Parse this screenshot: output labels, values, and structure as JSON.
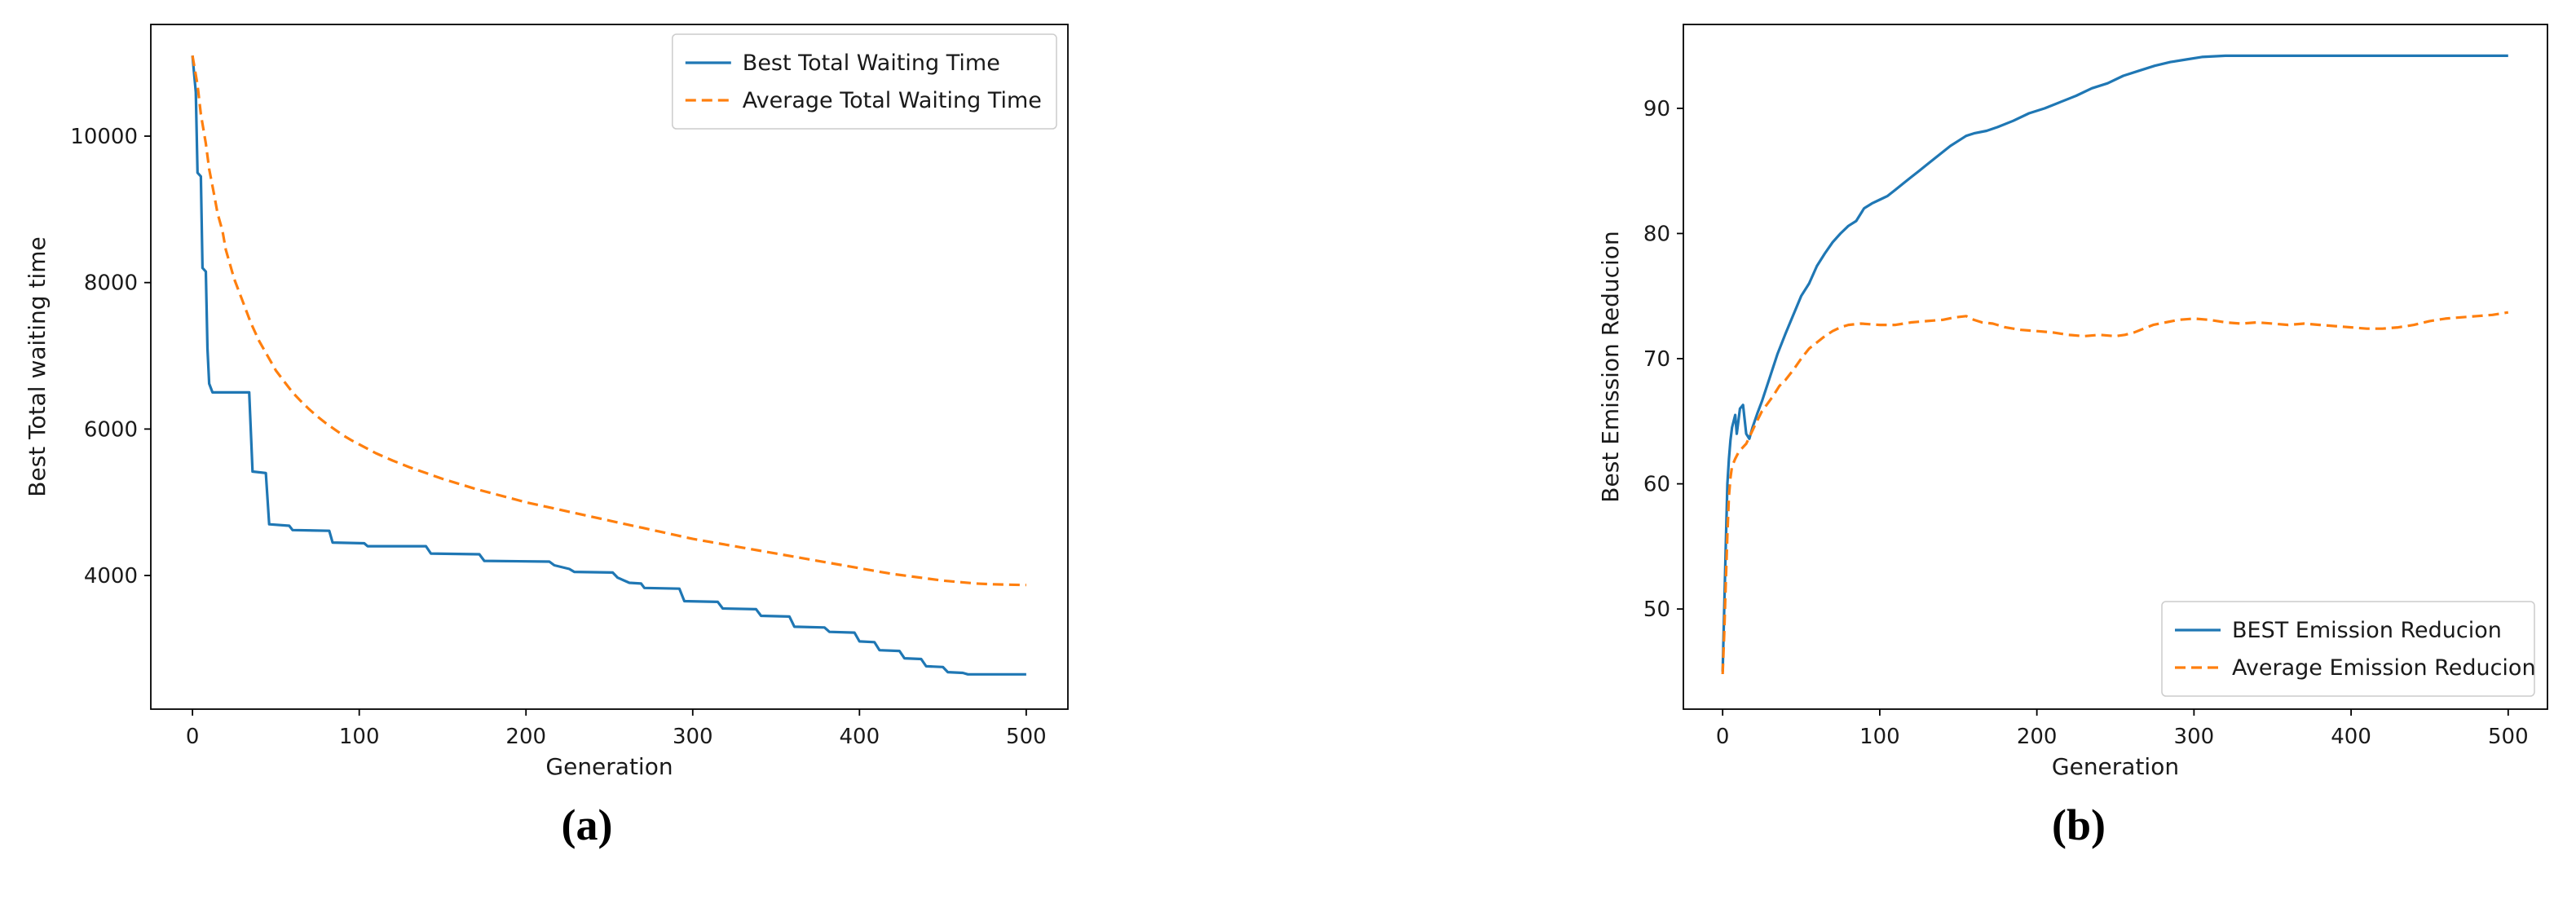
{
  "captions": {
    "a": "(a)",
    "b": "(b)"
  },
  "colors": {
    "series_blue": "#1f77b4",
    "series_orange": "#ff7f0e",
    "axis": "#000000",
    "legend_border": "#cccccc",
    "background": "#ffffff"
  },
  "chart_data": [
    {
      "id": "chart-a",
      "type": "line",
      "title": "",
      "xlabel": "Generation",
      "ylabel": "Best Total waiting time",
      "xlim": [
        -25,
        525
      ],
      "ylim": [
        2175,
        11525
      ],
      "xticks": [
        0,
        100,
        200,
        300,
        400,
        500
      ],
      "yticks": [
        4000,
        6000,
        8000,
        10000
      ],
      "grid": false,
      "legend_position": "top-right",
      "series": [
        {
          "name": "Best Total Waiting Time",
          "color": "#1f77b4",
          "dash": "solid",
          "points": [
            [
              0,
              11100
            ],
            [
              2,
              10600
            ],
            [
              3,
              9500
            ],
            [
              5,
              9450
            ],
            [
              6,
              8200
            ],
            [
              8,
              8150
            ],
            [
              9,
              7100
            ],
            [
              10,
              6620
            ],
            [
              12,
              6500
            ],
            [
              34,
              6500
            ],
            [
              36,
              5420
            ],
            [
              44,
              5400
            ],
            [
              46,
              4700
            ],
            [
              58,
              4680
            ],
            [
              60,
              4620
            ],
            [
              82,
              4610
            ],
            [
              84,
              4450
            ],
            [
              103,
              4440
            ],
            [
              105,
              4400
            ],
            [
              140,
              4400
            ],
            [
              143,
              4300
            ],
            [
              172,
              4290
            ],
            [
              175,
              4200
            ],
            [
              214,
              4190
            ],
            [
              217,
              4140
            ],
            [
              226,
              4090
            ],
            [
              229,
              4050
            ],
            [
              252,
              4040
            ],
            [
              255,
              3970
            ],
            [
              262,
              3900
            ],
            [
              269,
              3890
            ],
            [
              271,
              3830
            ],
            [
              292,
              3820
            ],
            [
              295,
              3650
            ],
            [
              315,
              3640
            ],
            [
              318,
              3550
            ],
            [
              338,
              3540
            ],
            [
              341,
              3450
            ],
            [
              358,
              3440
            ],
            [
              361,
              3300
            ],
            [
              379,
              3290
            ],
            [
              382,
              3230
            ],
            [
              397,
              3220
            ],
            [
              400,
              3100
            ],
            [
              409,
              3090
            ],
            [
              412,
              2980
            ],
            [
              424,
              2970
            ],
            [
              427,
              2870
            ],
            [
              437,
              2860
            ],
            [
              440,
              2760
            ],
            [
              450,
              2750
            ],
            [
              453,
              2680
            ],
            [
              462,
              2670
            ],
            [
              465,
              2650
            ],
            [
              500,
              2650
            ]
          ]
        },
        {
          "name": "Average Total Waiting Time",
          "color": "#ff7f0e",
          "dash": "dashed",
          "points": [
            [
              0,
              11100
            ],
            [
              3,
              10700
            ],
            [
              5,
              10300
            ],
            [
              8,
              9900
            ],
            [
              10,
              9550
            ],
            [
              13,
              9200
            ],
            [
              15,
              8950
            ],
            [
              18,
              8700
            ],
            [
              20,
              8450
            ],
            [
              25,
              8050
            ],
            [
              30,
              7750
            ],
            [
              35,
              7450
            ],
            [
              40,
              7200
            ],
            [
              45,
              7000
            ],
            [
              50,
              6800
            ],
            [
              55,
              6650
            ],
            [
              60,
              6500
            ],
            [
              65,
              6380
            ],
            [
              70,
              6270
            ],
            [
              75,
              6170
            ],
            [
              80,
              6080
            ],
            [
              85,
              6000
            ],
            [
              90,
              5920
            ],
            [
              95,
              5850
            ],
            [
              100,
              5790
            ],
            [
              110,
              5670
            ],
            [
              120,
              5570
            ],
            [
              130,
              5480
            ],
            [
              140,
              5400
            ],
            [
              150,
              5320
            ],
            [
              160,
              5250
            ],
            [
              170,
              5180
            ],
            [
              180,
              5120
            ],
            [
              190,
              5060
            ],
            [
              200,
              5000
            ],
            [
              210,
              4950
            ],
            [
              220,
              4900
            ],
            [
              230,
              4850
            ],
            [
              240,
              4800
            ],
            [
              250,
              4750
            ],
            [
              260,
              4700
            ],
            [
              270,
              4650
            ],
            [
              280,
              4600
            ],
            [
              290,
              4550
            ],
            [
              300,
              4500
            ],
            [
              310,
              4460
            ],
            [
              320,
              4420
            ],
            [
              330,
              4380
            ],
            [
              340,
              4340
            ],
            [
              350,
              4300
            ],
            [
              360,
              4260
            ],
            [
              370,
              4220
            ],
            [
              380,
              4180
            ],
            [
              390,
              4140
            ],
            [
              400,
              4100
            ],
            [
              410,
              4060
            ],
            [
              420,
              4020
            ],
            [
              430,
              3990
            ],
            [
              440,
              3960
            ],
            [
              450,
              3930
            ],
            [
              460,
              3910
            ],
            [
              470,
              3890
            ],
            [
              480,
              3880
            ],
            [
              490,
              3875
            ],
            [
              500,
              3870
            ]
          ]
        }
      ]
    },
    {
      "id": "chart-b",
      "type": "line",
      "title": "",
      "xlabel": "Generation",
      "ylabel": "Best Emission Reducion",
      "xlim": [
        -25,
        525
      ],
      "ylim": [
        42,
        96.7
      ],
      "xticks": [
        0,
        100,
        200,
        300,
        400,
        500
      ],
      "yticks": [
        50,
        60,
        70,
        80,
        90
      ],
      "grid": false,
      "legend_position": "bottom-right",
      "series": [
        {
          "name": "BEST Emission Reducion",
          "color": "#1f77b4",
          "dash": "solid",
          "points": [
            [
              0,
              45
            ],
            [
              1,
              50
            ],
            [
              2,
              55
            ],
            [
              3,
              60
            ],
            [
              4,
              62
            ],
            [
              5,
              63.5
            ],
            [
              6,
              64.5
            ],
            [
              8,
              65.5
            ],
            [
              9,
              64
            ],
            [
              11,
              66
            ],
            [
              13,
              66.3
            ],
            [
              15,
              64
            ],
            [
              17,
              63.6
            ],
            [
              19,
              64.5
            ],
            [
              22,
              65.6
            ],
            [
              25,
              66.6
            ],
            [
              30,
              68.5
            ],
            [
              35,
              70.4
            ],
            [
              40,
              72
            ],
            [
              45,
              73.5
            ],
            [
              50,
              75
            ],
            [
              55,
              76
            ],
            [
              60,
              77.4
            ],
            [
              65,
              78.4
            ],
            [
              70,
              79.3
            ],
            [
              75,
              80
            ],
            [
              80,
              80.6
            ],
            [
              85,
              81
            ],
            [
              90,
              82
            ],
            [
              95,
              82.4
            ],
            [
              100,
              82.7
            ],
            [
              105,
              83
            ],
            [
              110,
              83.5
            ],
            [
              115,
              84
            ],
            [
              120,
              84.5
            ],
            [
              125,
              85
            ],
            [
              130,
              85.5
            ],
            [
              135,
              86
            ],
            [
              140,
              86.5
            ],
            [
              145,
              87
            ],
            [
              150,
              87.4
            ],
            [
              155,
              87.8
            ],
            [
              160,
              88
            ],
            [
              168,
              88.2
            ],
            [
              175,
              88.5
            ],
            [
              185,
              89
            ],
            [
              195,
              89.6
            ],
            [
              205,
              90
            ],
            [
              215,
              90.5
            ],
            [
              225,
              91
            ],
            [
              235,
              91.6
            ],
            [
              245,
              92
            ],
            [
              255,
              92.6
            ],
            [
              265,
              93
            ],
            [
              275,
              93.4
            ],
            [
              285,
              93.7
            ],
            [
              295,
              93.9
            ],
            [
              305,
              94.1
            ],
            [
              320,
              94.2
            ],
            [
              400,
              94.2
            ],
            [
              500,
              94.2
            ]
          ]
        },
        {
          "name": "Average Emission Reducion",
          "color": "#ff7f0e",
          "dash": "dashed",
          "points": [
            [
              0,
              44.8
            ],
            [
              1,
              48
            ],
            [
              2,
              52
            ],
            [
              3,
              56
            ],
            [
              4,
              59
            ],
            [
              5,
              60.5
            ],
            [
              6,
              61.4
            ],
            [
              8,
              62
            ],
            [
              10,
              62.5
            ],
            [
              12,
              62.8
            ],
            [
              15,
              63.2
            ],
            [
              18,
              64
            ],
            [
              21,
              64.8
            ],
            [
              25,
              65.8
            ],
            [
              28,
              66.3
            ],
            [
              32,
              67
            ],
            [
              36,
              67.8
            ],
            [
              40,
              68.3
            ],
            [
              45,
              69.1
            ],
            [
              50,
              70
            ],
            [
              55,
              70.8
            ],
            [
              60,
              71.3
            ],
            [
              65,
              71.8
            ],
            [
              70,
              72.2
            ],
            [
              75,
              72.5
            ],
            [
              80,
              72.7
            ],
            [
              88,
              72.8
            ],
            [
              100,
              72.7
            ],
            [
              110,
              72.7
            ],
            [
              120,
              72.9
            ],
            [
              130,
              73
            ],
            [
              140,
              73.1
            ],
            [
              148,
              73.3
            ],
            [
              155,
              73.4
            ],
            [
              160,
              73.1
            ],
            [
              165,
              72.9
            ],
            [
              172,
              72.8
            ],
            [
              180,
              72.5
            ],
            [
              190,
              72.3
            ],
            [
              200,
              72.2
            ],
            [
              210,
              72.1
            ],
            [
              220,
              71.9
            ],
            [
              230,
              71.8
            ],
            [
              240,
              71.9
            ],
            [
              250,
              71.8
            ],
            [
              256,
              71.9
            ],
            [
              262,
              72.1
            ],
            [
              268,
              72.4
            ],
            [
              274,
              72.7
            ],
            [
              282,
              72.9
            ],
            [
              290,
              73.1
            ],
            [
              300,
              73.2
            ],
            [
              310,
              73.1
            ],
            [
              320,
              72.9
            ],
            [
              330,
              72.8
            ],
            [
              340,
              72.9
            ],
            [
              350,
              72.8
            ],
            [
              360,
              72.7
            ],
            [
              370,
              72.8
            ],
            [
              380,
              72.7
            ],
            [
              390,
              72.6
            ],
            [
              400,
              72.5
            ],
            [
              410,
              72.4
            ],
            [
              420,
              72.4
            ],
            [
              430,
              72.5
            ],
            [
              440,
              72.7
            ],
            [
              450,
              73
            ],
            [
              460,
              73.2
            ],
            [
              470,
              73.3
            ],
            [
              480,
              73.4
            ],
            [
              490,
              73.5
            ],
            [
              500,
              73.7
            ]
          ]
        }
      ]
    }
  ]
}
